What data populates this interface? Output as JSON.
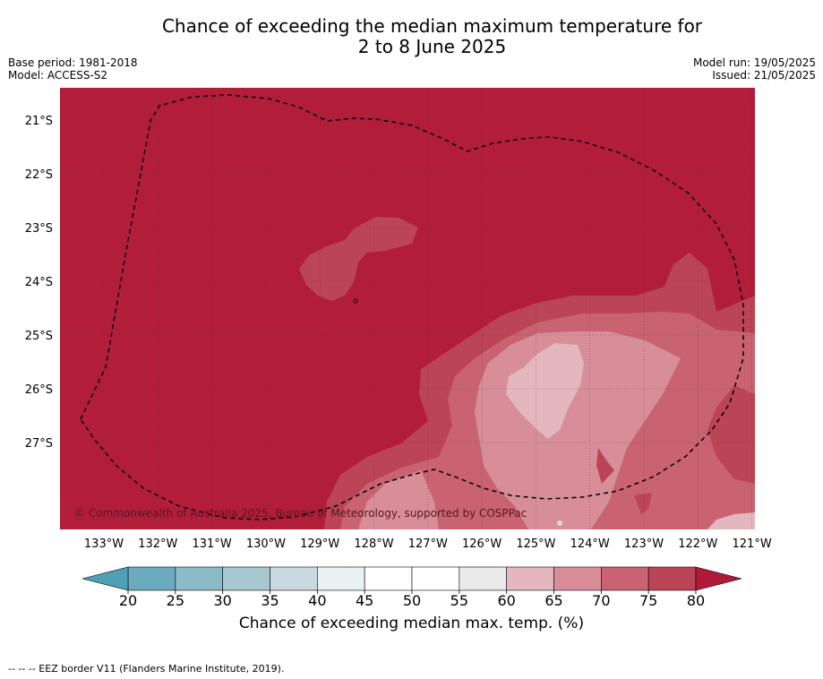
{
  "header": {
    "title_line1": "Chance of exceeding the median maximum temperature for",
    "title_line2": "2 to 8 June 2025",
    "base_period": "Base period: 1981-2018",
    "model": "Model: ACCESS-S2",
    "model_run": "Model run: 19/05/2025",
    "issued": "Issued: 21/05/2025"
  },
  "map": {
    "copyright": "© Commonwealth of Australia 2025, Bureau of Meteorology, supported by COSPPac",
    "lat_labels": [
      "21°S",
      "22°S",
      "23°S",
      "24°S",
      "25°S",
      "26°S",
      "27°S"
    ],
    "lon_labels": [
      "133°W",
      "132°W",
      "131°W",
      "130°W",
      "129°W",
      "128°W",
      "127°W",
      "126°W",
      "125°W",
      "124°W",
      "123°W",
      "122°W",
      "121°W"
    ],
    "background_color": "#b21e3a",
    "eez_border_style": "dashed"
  },
  "colorbar": {
    "ticks": [
      "20",
      "25",
      "30",
      "35",
      "40",
      "45",
      "50",
      "55",
      "60",
      "65",
      "70",
      "75",
      "80"
    ],
    "colors": [
      "#6aacbd",
      "#8bbbc7",
      "#a8c8cf",
      "#c8dadf",
      "#eaf1f3",
      "#ffffff",
      "#ffffff",
      "#e9e9ea",
      "#e3b7bd",
      "#d78e98",
      "#c96371",
      "#bc4457"
    ],
    "under_color": "#4ea1b4",
    "over_color": "#b01a3a",
    "label": "Chance of exceeding median max. temp. (%)"
  },
  "footnote": "--  --  -- EEZ border V11 (Flanders Marine Institute, 2019)."
}
